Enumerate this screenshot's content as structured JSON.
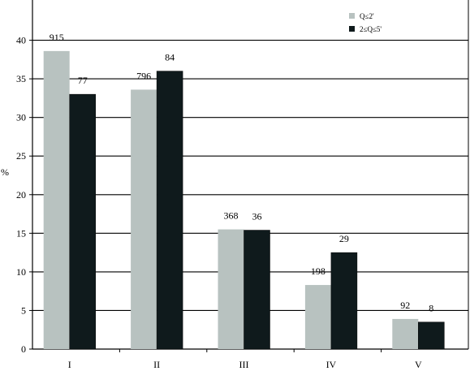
{
  "chart_data": {
    "type": "bar",
    "categories": [
      "I",
      "II",
      "III",
      "IV",
      "V"
    ],
    "ylabel": "%",
    "xlabel": "",
    "title": "",
    "ylim": [
      0,
      45
    ],
    "yticks": [
      0,
      5,
      10,
      15,
      20,
      25,
      30,
      35,
      40
    ],
    "grid": true,
    "legend_position": "top-right",
    "series": [
      {
        "name": "Q≤2'",
        "color": "#b8c2c0",
        "values": [
          38.6,
          33.6,
          15.5,
          8.3,
          3.9
        ],
        "data_labels": [
          "915",
          "796",
          "368",
          "198",
          "92"
        ]
      },
      {
        "name": "2≤Q≤5'",
        "color": "#0f1a1c",
        "values": [
          33.0,
          36.0,
          15.4,
          12.5,
          3.5
        ],
        "data_labels": [
          "77",
          "84",
          "36",
          "29",
          "8"
        ]
      }
    ]
  }
}
